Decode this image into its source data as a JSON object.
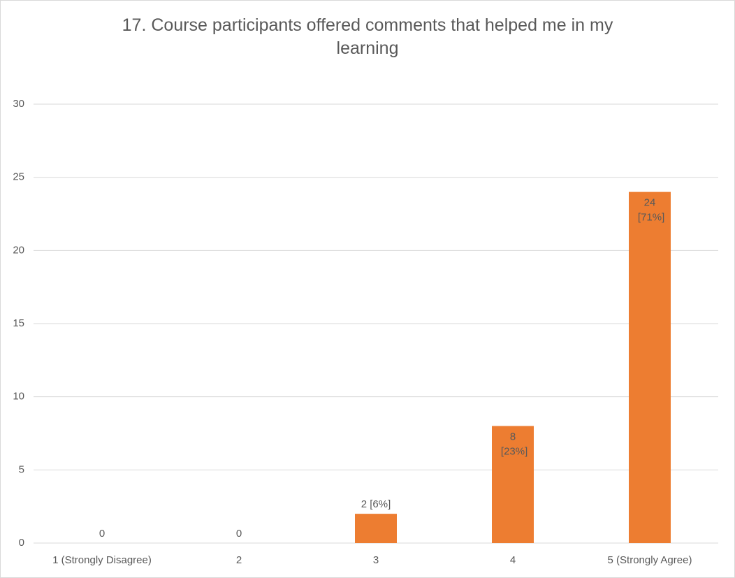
{
  "chart_data": {
    "type": "bar",
    "title": "17. Course participants offered comments that helped me in my learning",
    "categories": [
      "1 (Strongly Disagree)",
      "2",
      "3",
      "4",
      "5 (Strongly Agree)"
    ],
    "values": [
      0,
      0,
      2,
      8,
      24
    ],
    "value_labels": [
      "0",
      "0",
      "2 [6%]",
      "8 [23%]",
      "24 [71%]"
    ],
    "color": "#ed7d31",
    "ylim": [
      0,
      30
    ],
    "yticks": [
      0,
      5,
      10,
      15,
      20,
      25,
      30
    ],
    "grid": true
  }
}
